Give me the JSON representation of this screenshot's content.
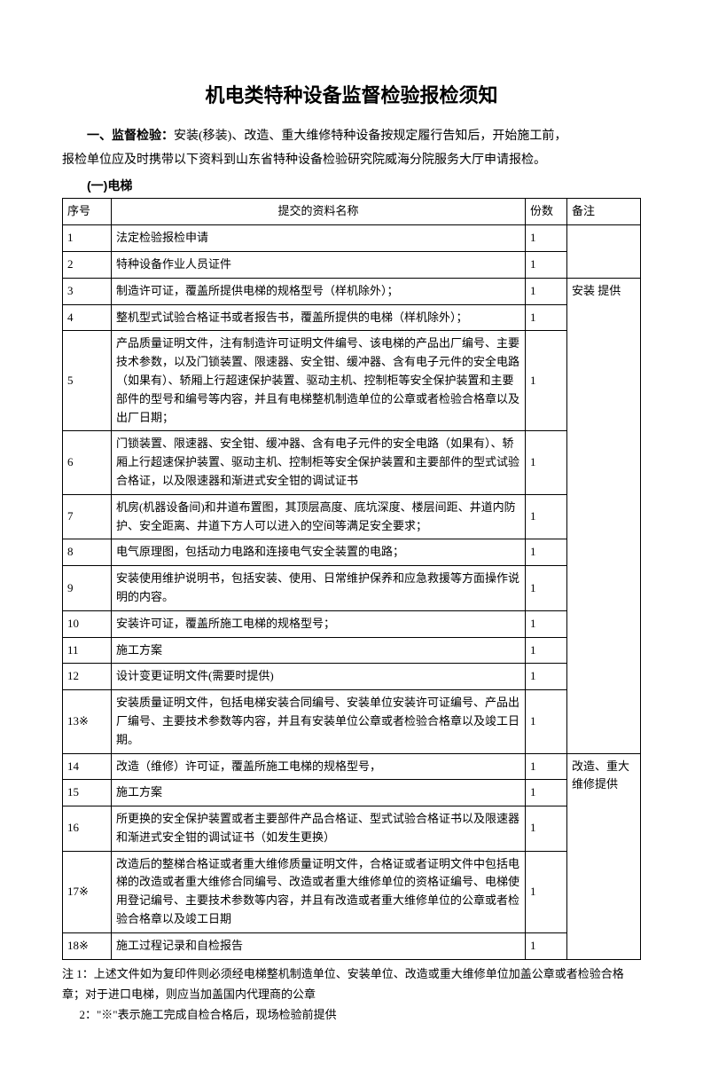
{
  "title": "机电类特种设备监督检验报检须知",
  "intro_label": "一、监督检验：",
  "intro_body": "安装(移装)、改造、重大维修特种设备按规定履行告知后，开始施工前，",
  "intro_line2": "报检单位应及时携带以下资料到山东省特种设备检验研究院威海分院服务大厅申请报检。",
  "section_label": "(一)电梯",
  "headers": {
    "seq": "序号",
    "name": "提交的资料名称",
    "copies": "份数",
    "remark": "备注"
  },
  "remarks": {
    "install": "安装 提供",
    "modify": "改造、重大维修提供"
  },
  "rows": [
    {
      "seq": "1",
      "name": "法定检验报检申请",
      "copies": "1"
    },
    {
      "seq": "2",
      "name": "特种设备作业人员证件",
      "copies": "1"
    },
    {
      "seq": "3",
      "name": "制造许可证，覆盖所提供电梯的规格型号（样机除外）；",
      "copies": "1"
    },
    {
      "seq": "4",
      "name": "整机型式试验合格证书或者报告书，覆盖所提供的电梯（样机除外）；",
      "copies": "1"
    },
    {
      "seq": "5",
      "name": "产品质量证明文件，注有制造许可证明文件编号、该电梯的产品出厂编号、主要技术参数，以及门锁装置、限速器、安全钳、缓冲器、含有电子元件的安全电路（如果有）、轿厢上行超速保护装置、驱动主机、控制柜等安全保护装置和主要部件的型号和编号等内容，并且有电梯整机制造单位的公章或者检验合格章以及出厂日期；",
      "copies": "1"
    },
    {
      "seq": "6",
      "name": "门锁装置、限速器、安全钳、缓冲器、含有电子元件的安全电路（如果有）、轿厢上行超速保护装置、驱动主机、控制柜等安全保护装置和主要部件的型式试验合格证，以及限速器和渐进式安全钳的调试证书",
      "copies": "1"
    },
    {
      "seq": "7",
      "name": "机房(机器设备间)和井道布置图，其顶层高度、底坑深度、楼层间距、井道内防护、安全距离、井道下方人可以进入的空间等满足安全要求；",
      "copies": "1"
    },
    {
      "seq": "8",
      "name": "电气原理图，包括动力电路和连接电气安全装置的电路；",
      "copies": "1"
    },
    {
      "seq": "9",
      "name": "安装使用维护说明书，包括安装、使用、日常维护保养和应急救援等方面操作说明的内容。",
      "copies": "1"
    },
    {
      "seq": "10",
      "name": "安装许可证，覆盖所施工电梯的规格型号；",
      "copies": "1"
    },
    {
      "seq": "11",
      "name": "施工方案",
      "copies": "1"
    },
    {
      "seq": "12",
      "name": "设计变更证明文件(需要时提供)",
      "copies": "1"
    },
    {
      "seq": "13※",
      "name": "安装质量证明文件，包括电梯安装合同编号、安装单位安装许可证编号、产品出厂编号、主要技术参数等内容，并且有安装单位公章或者检验合格章以及竣工日期。",
      "copies": "1"
    },
    {
      "seq": "14",
      "name": "改造（维修）许可证，覆盖所施工电梯的规格型号，",
      "copies": "1"
    },
    {
      "seq": "15",
      "name": "施工方案",
      "copies": "1"
    },
    {
      "seq": "16",
      "name": "所更换的安全保护装置或者主要部件产品合格证、型式试验合格证书以及限速器和渐进式安全钳的调试证书（如发生更换）",
      "copies": "1"
    },
    {
      "seq": "17※",
      "name": "改造后的整梯合格证或者重大维修质量证明文件，合格证或者证明文件中包括电梯的改造或者重大维修合同编号、改造或者重大维修单位的资格证编号、电梯使用登记编号、主要技术参数等内容，并且有改造或者重大维修单位的公章或者检验合格章以及竣工日期",
      "copies": "1"
    },
    {
      "seq": "18※",
      "name": "施工过程记录和自检报告",
      "copies": "1"
    }
  ],
  "note1": "注 1：上述文件如为复印件则必须经电梯整机制造单位、安装单位、改造或重大维修单位加盖公章或者检验合格章；对于进口电梯，则应当加盖国内代理商的公章",
  "note2": "2：\"※\"表示施工完成自检合格后，现场检验前提供"
}
